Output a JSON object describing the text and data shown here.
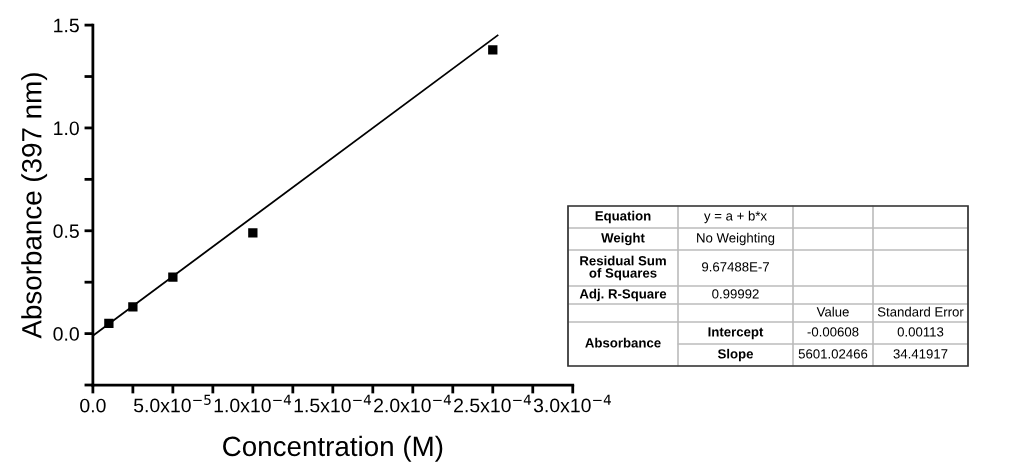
{
  "chart_data": {
    "type": "scatter",
    "xlabel": "Concentration (M)",
    "ylabel": "Absorbance (397 nm)",
    "xlim": [
      0,
      0.0003
    ],
    "ylim": [
      -0.25,
      1.5
    ],
    "xticks": [
      {
        "value": 0,
        "label": "0.0"
      },
      {
        "value": 2.5e-05,
        "label": null
      },
      {
        "value": 5e-05,
        "label": "5.0x10$^{−5}$"
      },
      {
        "value": 7.5e-05,
        "label": null
      },
      {
        "value": 0.0001,
        "label": "1.0x10$^{−4}$"
      },
      {
        "value": 0.000125,
        "label": null
      },
      {
        "value": 0.00015,
        "label": "1.5x10$^{−4}$"
      },
      {
        "value": 0.000175,
        "label": null
      },
      {
        "value": 0.0002,
        "label": "2.0x10$^{−4}$"
      },
      {
        "value": 0.000225,
        "label": null
      },
      {
        "value": 0.00025,
        "label": "2.5x10$^{−4}$"
      },
      {
        "value": 0.000275,
        "label": null
      },
      {
        "value": 0.0003,
        "label": "3.0x10$^{−4}$"
      }
    ],
    "yticks": [
      {
        "value": -0.25,
        "label": null
      },
      {
        "value": 0,
        "label": "0.0"
      },
      {
        "value": 0.25,
        "label": null
      },
      {
        "value": 0.5,
        "label": "0.5"
      },
      {
        "value": 0.75,
        "label": null
      },
      {
        "value": 1.0,
        "label": "1.0"
      },
      {
        "value": 1.25,
        "label": null
      },
      {
        "value": 1.5,
        "label": "1.5"
      }
    ],
    "grid": false,
    "legend": false,
    "series": [
      {
        "color": "#000000",
        "marker": "square",
        "x": [
          1e-05,
          2.5e-05,
          5e-05,
          0.0001,
          0.00025
        ],
        "values": [
          0.05,
          0.13,
          0.275,
          0.49,
          1.38
        ]
      },
      {
        "type": "line",
        "color": "#000000",
        "marker": "none",
        "line_style": "solid",
        "x": [
          0,
          0.000253
        ],
        "values": [
          -0.01,
          1.45
        ]
      }
    ],
    "annotations": [
      "Equation",
      "y = a + b*x",
      "Weight",
      "No Weighting",
      "Residual Sum\nof Squares",
      "9.67488E-7",
      "Adj. R-Square",
      "0.99992",
      "Value",
      "Standard Error",
      "Absorbance",
      "Intercept",
      "-0.00608",
      "0.00113",
      "Slope",
      "5601.02466",
      "34.41917"
    ]
  }
}
